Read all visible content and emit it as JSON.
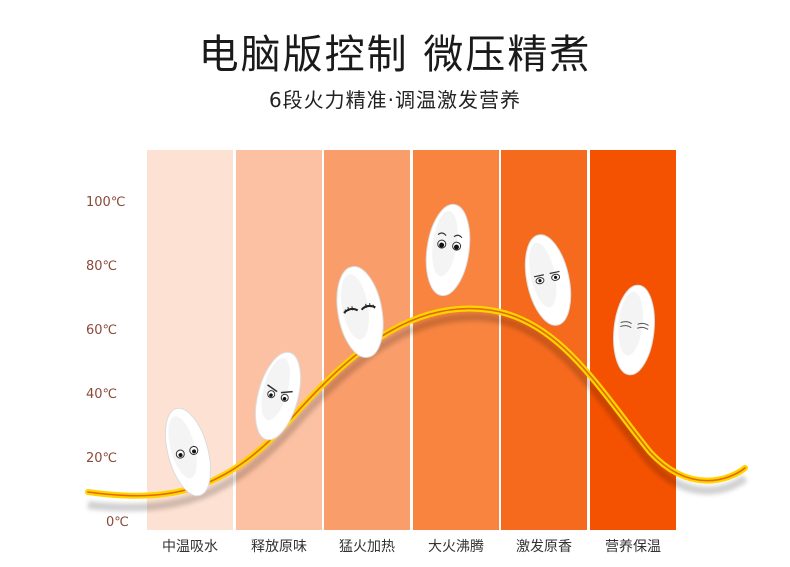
{
  "header": {
    "title": "电脑版控制 微压精煮",
    "subtitle": "6段火力精准·调温激发营养"
  },
  "y_axis": {
    "ticks": [
      "100℃",
      "80℃",
      "60℃",
      "40℃",
      "20℃",
      "0℃"
    ]
  },
  "stages": [
    {
      "label": "中温吸水",
      "color": "#fde1d2"
    },
    {
      "label": "释放原味",
      "color": "#fcc1a2"
    },
    {
      "label": "猛火加热",
      "color": "#f99d6b"
    },
    {
      "label": "大火沸腾",
      "color": "#f8843f"
    },
    {
      "label": "激发原香",
      "color": "#f66a1e"
    },
    {
      "label": "营养保温",
      "color": "#f45200"
    }
  ],
  "curve_colors": {
    "glow": "#ffd400",
    "core": "#e06a00"
  }
}
